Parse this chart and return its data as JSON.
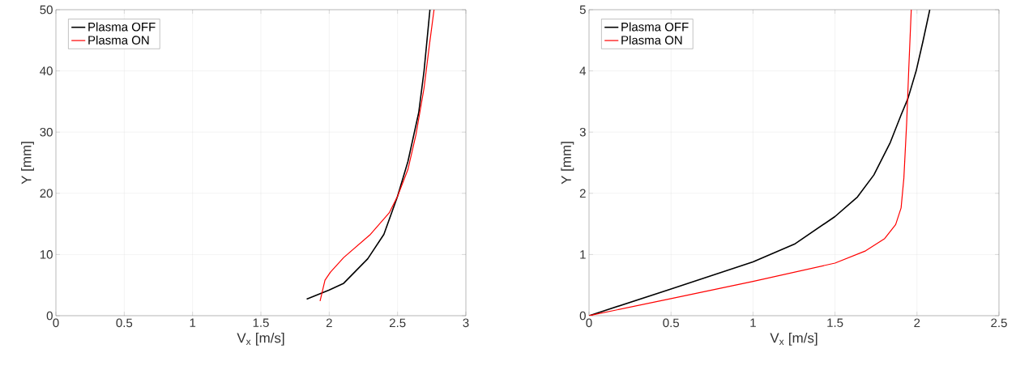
{
  "chart_data": [
    {
      "type": "line",
      "xlabel": "V$_{x}$ [m/s]",
      "ylabel": "Y [mm]",
      "xlim": [
        0,
        3
      ],
      "ylim": [
        0,
        50
      ],
      "xticks": [
        0,
        0.5,
        1,
        1.5,
        2,
        2.5,
        3
      ],
      "yticks": [
        0,
        10,
        20,
        30,
        40,
        50
      ],
      "grid": true,
      "legend": "top left",
      "marker": "none",
      "line_style": "solid",
      "series": [
        {
          "name": "Plasma OFF",
          "color": "#000000",
          "x": [
            1.835,
            2.0,
            2.106,
            2.282,
            2.4,
            2.5,
            2.576,
            2.655,
            2.694,
            2.737
          ],
          "values": [
            2.7,
            4.2,
            5.3,
            9.3,
            13.3,
            19.5,
            25.2,
            33.2,
            40,
            50
          ]
        },
        {
          "name": "Plasma ON",
          "color": "#ff0000",
          "x": [
            1.933,
            1.969,
            2.008,
            2.106,
            2.302,
            2.439,
            2.5,
            2.576,
            2.635,
            2.694,
            2.733,
            2.767
          ],
          "values": [
            2.4,
            5.8,
            7.1,
            9.5,
            13.3,
            16.8,
            19.5,
            23.9,
            29.6,
            37.2,
            44.2,
            50
          ]
        }
      ]
    },
    {
      "type": "line",
      "xlabel": "V$_{x}$ [m/s]",
      "ylabel": "Y [mm]",
      "xlim": [
        0,
        2.5
      ],
      "ylim": [
        0,
        5
      ],
      "xticks": [
        0,
        0.5,
        1,
        1.5,
        2,
        2.5
      ],
      "yticks": [
        0,
        1,
        2,
        3,
        4,
        5
      ],
      "grid": true,
      "legend": "top left",
      "marker": "none",
      "line_style": "solid",
      "series": [
        {
          "name": "Plasma OFF",
          "color": "#000000",
          "x": [
            0,
            0.5,
            1,
            1.253,
            1.5,
            1.637,
            1.737,
            1.837,
            1.903,
            1.945,
            1.995,
            2.037,
            2.078
          ],
          "values": [
            0,
            0.435,
            0.88,
            1.17,
            1.62,
            1.94,
            2.3,
            2.83,
            3.28,
            3.55,
            4.0,
            4.49,
            5.0
          ]
        },
        {
          "name": "Plasma ON",
          "color": "#ff0000",
          "x": [
            0,
            0.5,
            1,
            1.5,
            1.687,
            1.803,
            1.87,
            1.903,
            1.92,
            1.937,
            1.95,
            1.965
          ],
          "values": [
            0,
            0.28,
            0.56,
            0.86,
            1.06,
            1.26,
            1.49,
            1.76,
            2.25,
            3.15,
            4.04,
            5.0
          ]
        }
      ]
    }
  ]
}
